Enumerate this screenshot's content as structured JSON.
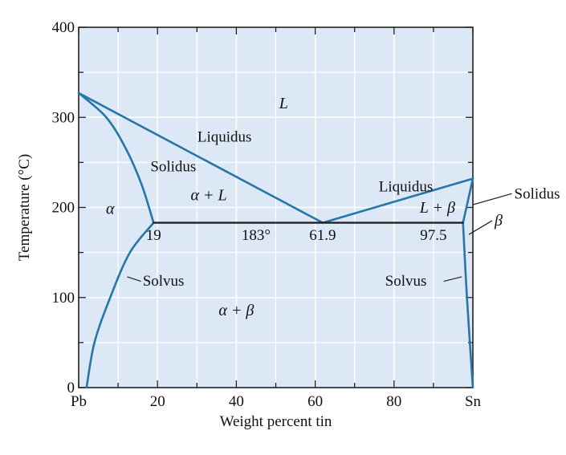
{
  "chart_data": {
    "type": "phase-diagram",
    "title": "",
    "xlabel": "Weight percent tin",
    "ylabel": "Temperature (°C)",
    "xlim": [
      0,
      100
    ],
    "ylim": [
      0,
      400
    ],
    "x_ticks": [
      {
        "value": 0,
        "label": "Pb"
      },
      {
        "value": 20,
        "label": "20"
      },
      {
        "value": 40,
        "label": "40"
      },
      {
        "value": 60,
        "label": "60"
      },
      {
        "value": 80,
        "label": "80"
      },
      {
        "value": 100,
        "label": "Sn"
      }
    ],
    "y_ticks": [
      {
        "value": 0,
        "label": "0"
      },
      {
        "value": 100,
        "label": "100"
      },
      {
        "value": 200,
        "label": "200"
      },
      {
        "value": 300,
        "label": "300"
      },
      {
        "value": 400,
        "label": "400"
      }
    ],
    "grid": true,
    "colors": {
      "background": "#dce8f5",
      "grid": "#ffffff",
      "curve": "#2676a8",
      "eutectic": "#222222"
    },
    "curves": [
      {
        "name": "liquidus-left",
        "points": [
          [
            0,
            327
          ],
          [
            61.9,
            183
          ]
        ]
      },
      {
        "name": "liquidus-right",
        "points": [
          [
            61.9,
            183
          ],
          [
            100,
            232
          ]
        ]
      },
      {
        "name": "solidus-left",
        "points": [
          [
            0,
            327
          ],
          [
            7,
            300
          ],
          [
            12,
            265
          ],
          [
            16,
            225
          ],
          [
            19,
            183
          ]
        ]
      },
      {
        "name": "solvus-left",
        "points": [
          [
            19,
            183
          ],
          [
            13,
            150
          ],
          [
            8,
            100
          ],
          [
            4,
            50
          ],
          [
            2,
            0
          ]
        ]
      },
      {
        "name": "solidus-right",
        "points": [
          [
            97.5,
            183
          ],
          [
            100,
            232
          ]
        ]
      },
      {
        "name": "solvus-right",
        "points": [
          [
            97.5,
            183
          ],
          [
            98.5,
            100
          ],
          [
            100,
            0
          ]
        ]
      },
      {
        "name": "eutectic-line",
        "points": [
          [
            19,
            183
          ],
          [
            97.5,
            183
          ]
        ]
      }
    ],
    "labels": [
      {
        "text": "L",
        "x": 52,
        "y": 310,
        "style": "italic"
      },
      {
        "text": "Liquidus",
        "x": 37,
        "y": 273,
        "style": "normal"
      },
      {
        "text": "Solidus",
        "x": 24,
        "y": 240,
        "style": "normal"
      },
      {
        "text": "α + L",
        "x": 33,
        "y": 208,
        "style": "italic"
      },
      {
        "text": "α",
        "x": 8,
        "y": 193,
        "style": "italic"
      },
      {
        "text": "Liquidus",
        "x": 83,
        "y": 218,
        "style": "normal"
      },
      {
        "text": "L + β",
        "x": 91,
        "y": 194,
        "style": "italic"
      },
      {
        "text": "19",
        "x": 19,
        "y": 164,
        "style": "normal"
      },
      {
        "text": "183°",
        "x": 45,
        "y": 164,
        "style": "normal"
      },
      {
        "text": "61.9",
        "x": 61.9,
        "y": 164,
        "style": "normal"
      },
      {
        "text": "97.5",
        "x": 90,
        "y": 164,
        "style": "normal"
      },
      {
        "text": "Solvus",
        "x": 21.5,
        "y": 113,
        "style": "normal"
      },
      {
        "text": "Solvus",
        "x": 83,
        "y": 113,
        "style": "normal"
      },
      {
        "text": "α + β",
        "x": 40,
        "y": 80,
        "style": "italic"
      }
    ],
    "outside_labels": [
      {
        "text": "Solidus",
        "x": 110.5,
        "y": 210,
        "style": "normal",
        "leader_to": [
          100,
          203
        ]
      },
      {
        "text": "β",
        "x": 105.5,
        "y": 180,
        "style": "italic",
        "leader_to": [
          99,
          170
        ]
      }
    ]
  }
}
